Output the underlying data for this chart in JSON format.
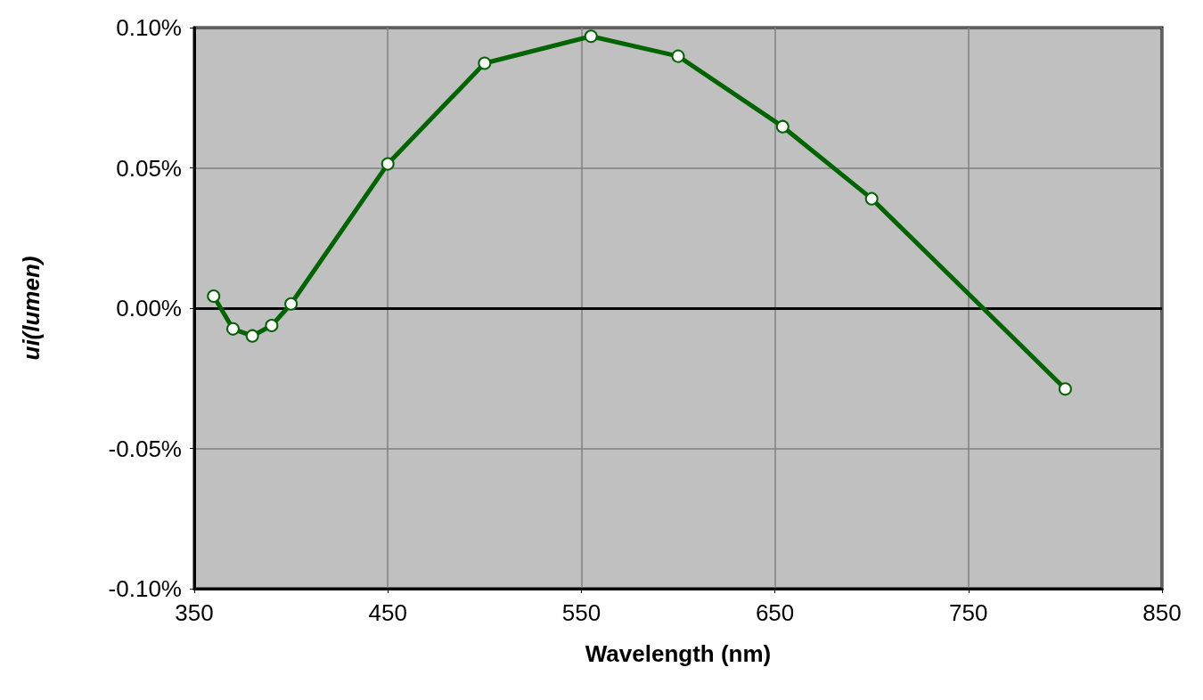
{
  "chart_data": {
    "type": "line",
    "xlabel": "Wavelength (nm)",
    "ylabel": "ui(lumen)",
    "x": [
      360,
      370,
      380,
      390,
      400,
      450,
      500,
      555,
      600,
      654,
      700,
      800
    ],
    "series": [
      {
        "color": "#006400",
        "values": [
          0.0043,
          -0.0074,
          -0.0099,
          -0.0062,
          0.0015,
          0.0514,
          0.0873,
          0.0969,
          0.0898,
          0.0647,
          0.039,
          -0.0288
        ]
      }
    ],
    "xlim": [
      350,
      850
    ],
    "xticks": [
      350,
      450,
      550,
      650,
      750,
      850
    ],
    "ylim": [
      -0.1,
      0.1
    ],
    "yticks": [
      {
        "value": -0.1,
        "label": "-0.10%"
      },
      {
        "value": -0.05,
        "label": "-0.05%"
      },
      {
        "value": 0,
        "label": "0.00%"
      },
      {
        "value": 0.05,
        "label": "0.05%"
      },
      {
        "value": 0.1,
        "label": "0.10%"
      }
    ],
    "ref_lines": [
      {
        "axis": "y",
        "value": 0,
        "color": "#000000"
      }
    ],
    "grid": true,
    "marker": "circle",
    "line_style": "solid"
  }
}
